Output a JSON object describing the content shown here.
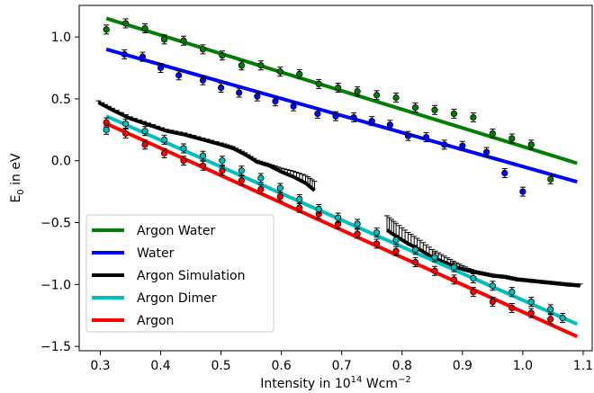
{
  "chart_data": {
    "type": "scatter",
    "xlabel": {
      "text": "Intensity in 10",
      "sup": "14",
      "unit": " Wcm",
      "unit_sup": "−2"
    },
    "ylabel": {
      "text": "E",
      "sub": "0",
      "unit": " in eV"
    },
    "xlim": [
      0.265,
      1.115
    ],
    "ylim": [
      -1.535,
      1.255
    ],
    "xticks": [
      0.3,
      0.4,
      0.5,
      0.6,
      0.7,
      0.8,
      0.9,
      1.0,
      1.1
    ],
    "xtick_labels": [
      "0.3",
      "0.4",
      "0.5",
      "0.6",
      "0.7",
      "0.8",
      "0.9",
      "1.0",
      "1.1"
    ],
    "yticks": [
      -1.5,
      -1.0,
      -0.5,
      0.0,
      0.5,
      1.0
    ],
    "ytick_labels": [
      "−1.5",
      "−1.0",
      "−0.5",
      "0.0",
      "0.5",
      "1.0"
    ],
    "legend": {
      "position": "lower-left"
    },
    "series": [
      {
        "name": "Argon Water",
        "color": "#008000",
        "fit": {
          "x": [
            0.31,
            1.09
          ],
          "y": [
            1.15,
            -0.02
          ]
        },
        "points": {
          "x": [
            0.31,
            0.342,
            0.374,
            0.406,
            0.438,
            0.47,
            0.502,
            0.534,
            0.566,
            0.598,
            0.63,
            0.662,
            0.694,
            0.726,
            0.758,
            0.79,
            0.822,
            0.854,
            0.886,
            0.918,
            0.95,
            0.982,
            1.014,
            1.046
          ],
          "y": [
            1.06,
            1.11,
            1.07,
            0.98,
            0.97,
            0.9,
            0.85,
            0.77,
            0.77,
            0.72,
            0.7,
            0.62,
            0.59,
            0.56,
            0.53,
            0.51,
            0.43,
            0.41,
            0.38,
            0.35,
            0.22,
            0.18,
            0.13,
            -0.15
          ]
        }
      },
      {
        "name": "Water",
        "color": "#0000ff",
        "fit": {
          "x": [
            0.31,
            1.09
          ],
          "y": [
            0.9,
            -0.17
          ]
        },
        "points": {
          "x": [
            0.34,
            0.37,
            0.4,
            0.43,
            0.47,
            0.5,
            0.53,
            0.56,
            0.59,
            0.62,
            0.66,
            0.69,
            0.72,
            0.75,
            0.78,
            0.81,
            0.84,
            0.87,
            0.9,
            0.94,
            0.97,
            1.0
          ],
          "y": [
            0.86,
            0.84,
            0.75,
            0.69,
            0.65,
            0.59,
            0.55,
            0.52,
            0.48,
            0.44,
            0.38,
            0.36,
            0.35,
            0.32,
            0.29,
            0.2,
            0.19,
            0.13,
            0.12,
            0.07,
            -0.1,
            -0.25
          ]
        }
      },
      {
        "name": "Argon Simulation",
        "color": "#000000",
        "segments": [
          {
            "x": [
              0.297,
              0.32,
              0.35,
              0.38,
              0.41,
              0.44,
              0.47,
              0.5,
              0.52,
              0.54,
              0.56,
              0.58,
              0.6,
              0.62,
              0.64,
              0.655
            ],
            "y": [
              0.47,
              0.41,
              0.34,
              0.29,
              0.24,
              0.21,
              0.17,
              0.13,
              0.1,
              0.05,
              -0.01,
              -0.04,
              -0.09,
              -0.13,
              -0.18,
              -0.24
            ]
          },
          {
            "x": [
              0.775,
              0.79,
              0.81,
              0.83,
              0.85,
              0.87,
              0.89,
              0.91,
              0.93,
              0.95,
              0.97,
              0.99,
              1.01,
              1.03,
              1.05,
              1.07,
              1.095
            ],
            "y": [
              -0.56,
              -0.61,
              -0.67,
              -0.72,
              -0.78,
              -0.82,
              -0.86,
              -0.89,
              -0.91,
              -0.93,
              -0.94,
              -0.96,
              -0.97,
              -0.98,
              -0.99,
              -1.0,
              -1.01
            ]
          }
        ]
      },
      {
        "name": "Argon Dimer",
        "color": "#00bfbf",
        "fit": {
          "x": [
            0.31,
            1.09
          ],
          "y": [
            0.36,
            -1.32
          ]
        },
        "points": {
          "x": [
            0.31,
            0.342,
            0.374,
            0.406,
            0.438,
            0.47,
            0.502,
            0.534,
            0.566,
            0.598,
            0.63,
            0.662,
            0.694,
            0.726,
            0.758,
            0.79,
            0.822,
            0.854,
            0.886,
            0.918,
            0.95,
            0.982,
            1.014,
            1.046,
            1.066
          ],
          "y": [
            0.25,
            0.3,
            0.24,
            0.17,
            0.1,
            0.04,
            0.0,
            -0.08,
            -0.14,
            -0.22,
            -0.31,
            -0.39,
            -0.46,
            -0.51,
            -0.58,
            -0.64,
            -0.72,
            -0.78,
            -0.86,
            -0.95,
            -1.01,
            -1.06,
            -1.14,
            -1.2,
            -1.27
          ]
        }
      },
      {
        "name": "Argon",
        "color": "#ff0000",
        "fit": {
          "x": [
            0.31,
            1.09
          ],
          "y": [
            0.3,
            -1.42
          ]
        },
        "points": {
          "x": [
            0.31,
            0.342,
            0.374,
            0.406,
            0.438,
            0.47,
            0.502,
            0.534,
            0.566,
            0.598,
            0.63,
            0.662,
            0.694,
            0.726,
            0.758,
            0.79,
            0.822,
            0.854,
            0.886,
            0.918,
            0.95,
            0.982,
            1.014,
            1.046
          ],
          "y": [
            0.31,
            0.22,
            0.13,
            0.06,
            0.0,
            -0.04,
            -0.08,
            -0.16,
            -0.23,
            -0.29,
            -0.38,
            -0.43,
            -0.51,
            -0.59,
            -0.67,
            -0.73,
            -0.82,
            -0.89,
            -0.96,
            -1.06,
            -1.14,
            -1.19,
            -1.23,
            -1.28
          ]
        }
      }
    ]
  }
}
